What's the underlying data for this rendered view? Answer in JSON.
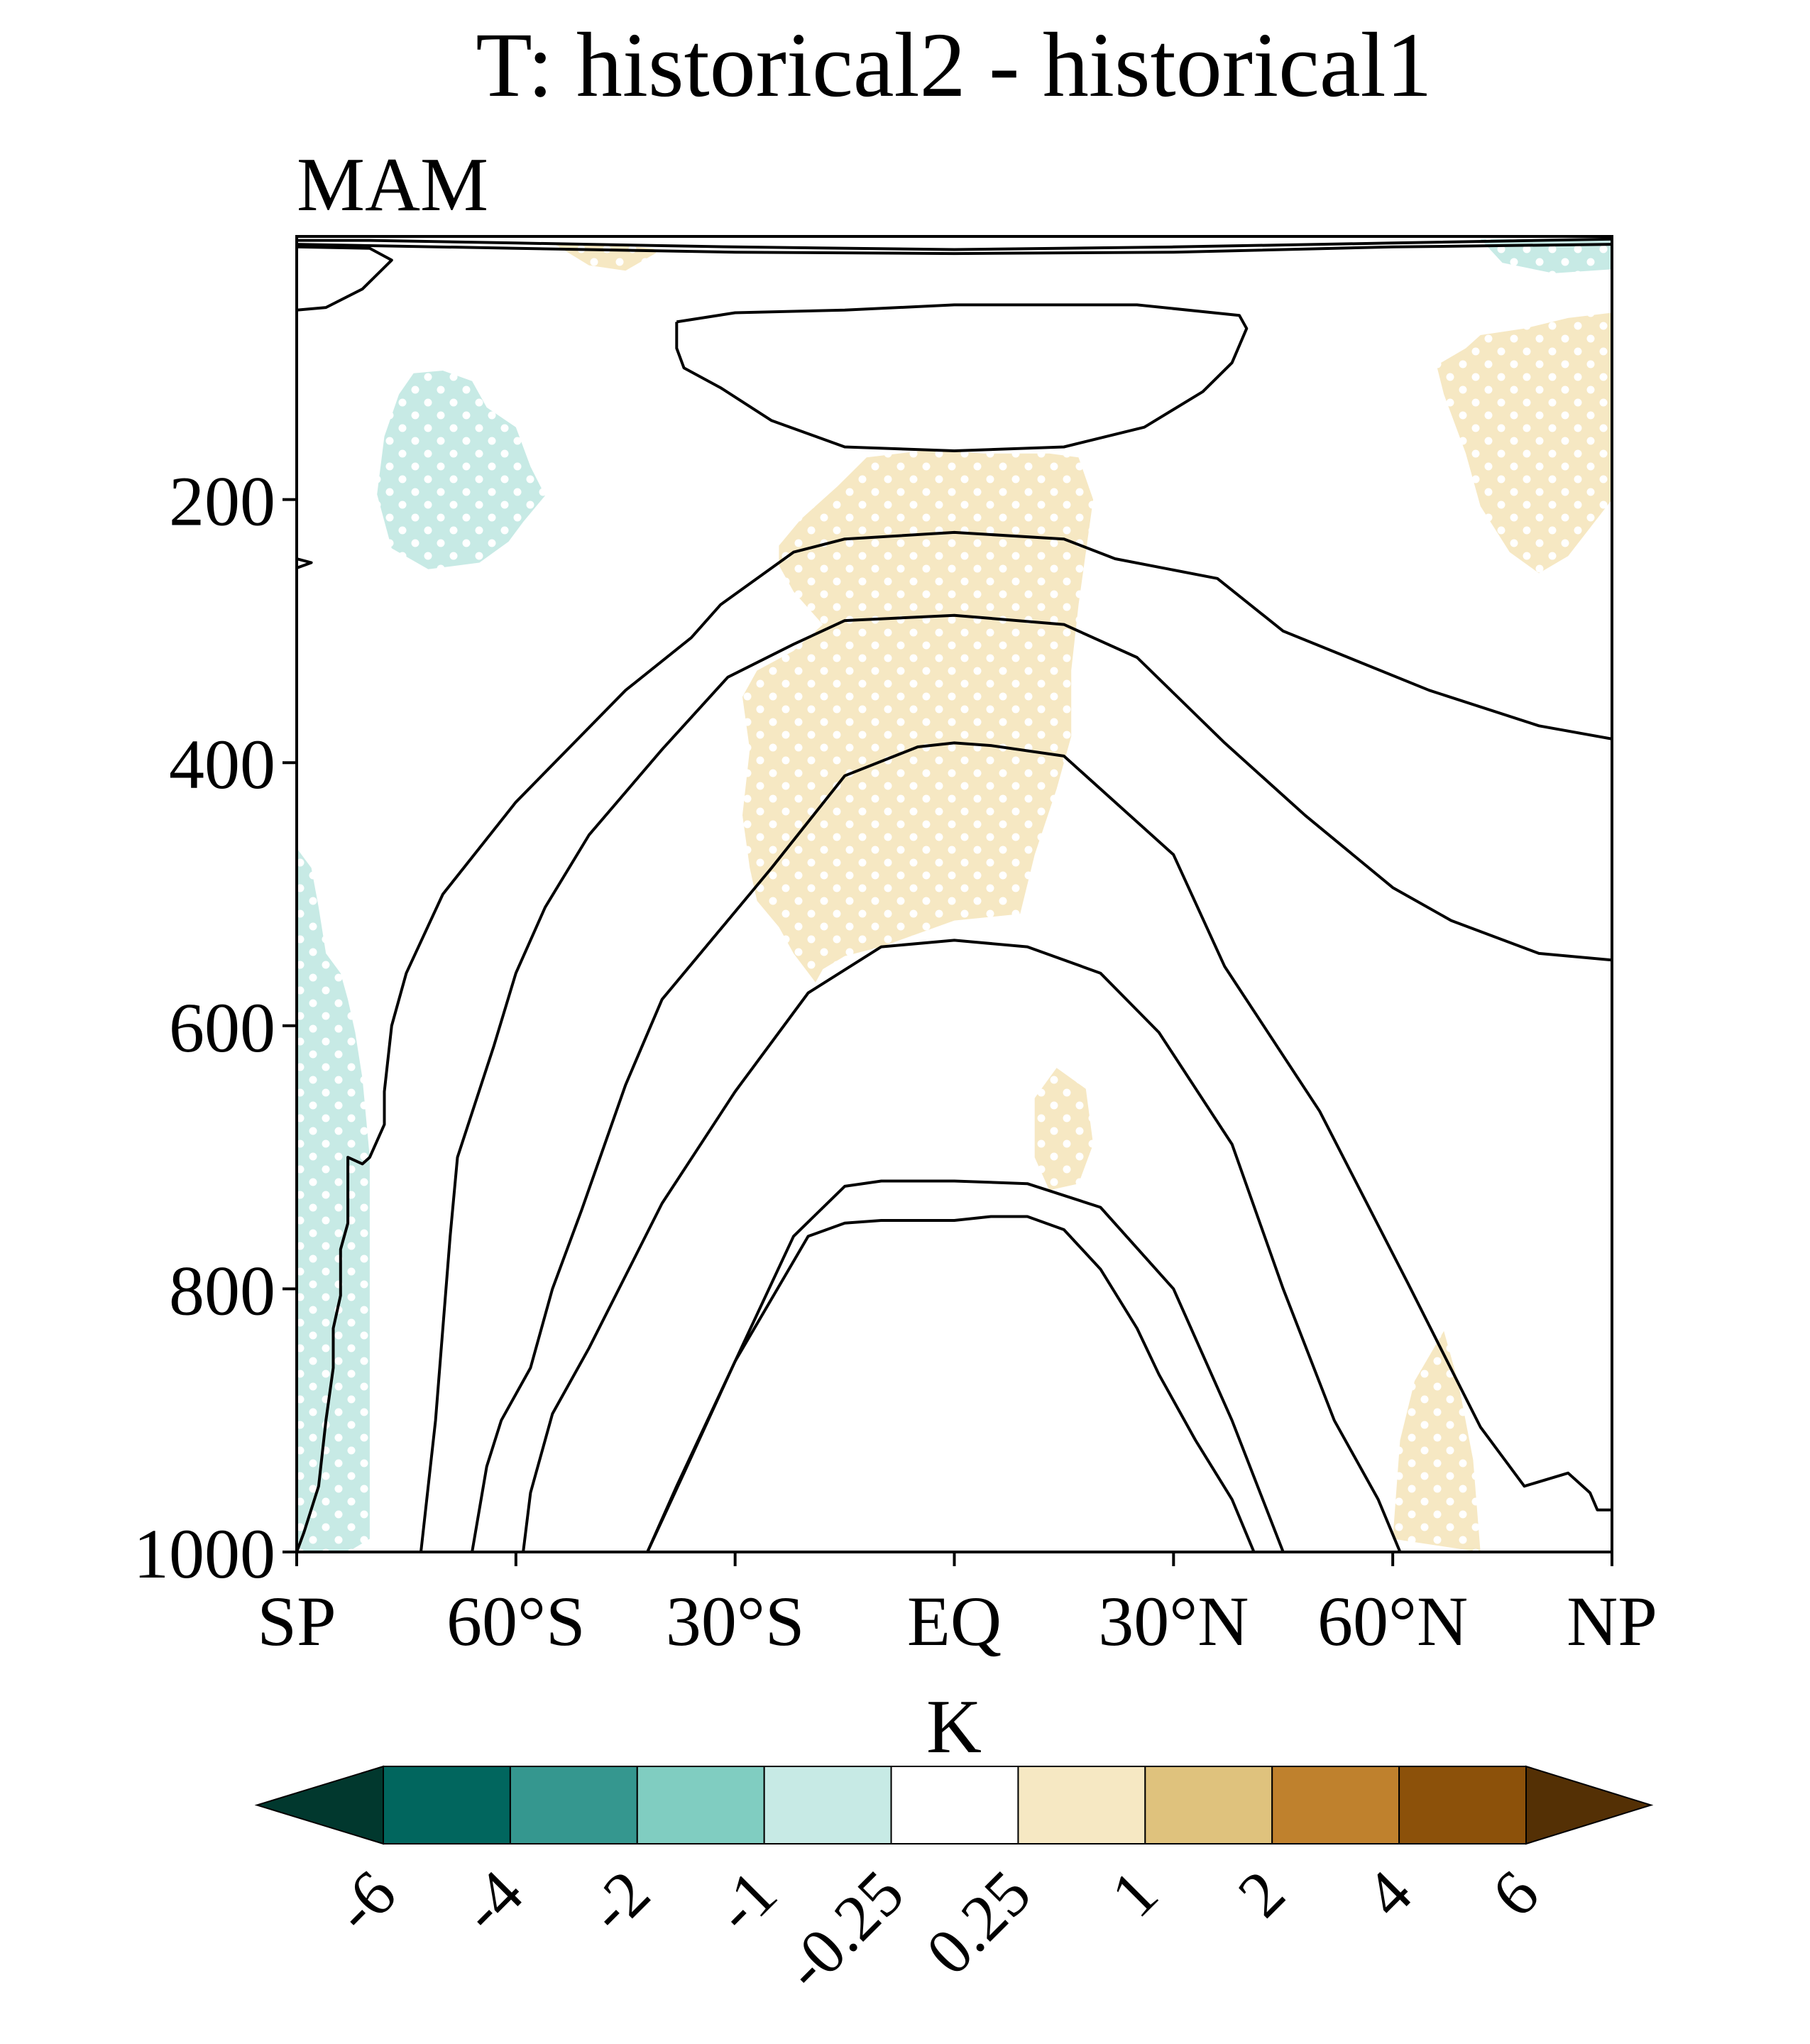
{
  "figure": {
    "title": "T: historical2 - historical1",
    "season": "MAM"
  },
  "chart_data": {
    "type": "contour",
    "title": "T: historical2 - historical1",
    "subtitle": "MAM",
    "x_axis": {
      "range": [
        -90,
        90
      ],
      "ticks": [
        -90,
        -60,
        -30,
        0,
        30,
        60,
        90
      ],
      "tick_labels": [
        "SP",
        "60°S",
        "30°S",
        "EQ",
        "30°N",
        "60°N",
        "NP"
      ]
    },
    "y_axis": {
      "range": [
        1000,
        0
      ],
      "ticks": [
        200,
        400,
        600,
        800,
        1000
      ],
      "tick_labels": [
        "200",
        "400",
        "600",
        "800",
        "1000"
      ]
    },
    "grid": false,
    "contour_lines": [
      {
        "points": [
          [
            -90,
            1000
          ],
          [
            -89,
            985
          ],
          [
            -87,
            950
          ],
          [
            -86,
            900
          ],
          [
            -85,
            860
          ],
          [
            -85,
            830
          ],
          [
            -84,
            805
          ],
          [
            -84,
            770
          ],
          [
            -83,
            750
          ],
          [
            -83,
            730
          ],
          [
            -83,
            700
          ],
          [
            -81,
            705
          ],
          [
            -80,
            700
          ],
          [
            -78,
            675
          ],
          [
            -78,
            650
          ],
          [
            -77,
            600
          ],
          [
            -75,
            560
          ],
          [
            -70,
            500
          ],
          [
            -60,
            430
          ],
          [
            -45,
            345
          ],
          [
            -36,
            305
          ],
          [
            -32,
            280
          ],
          [
            -22,
            240
          ],
          [
            -15,
            230
          ],
          [
            0,
            225
          ],
          [
            15,
            230
          ],
          [
            22,
            245
          ],
          [
            36,
            260
          ],
          [
            45,
            300
          ],
          [
            65,
            345
          ],
          [
            80,
            372
          ],
          [
            90,
            382
          ]
        ]
      },
      {
        "points": [
          [
            -73,
            1000
          ],
          [
            -72,
            950
          ],
          [
            -71,
            900
          ],
          [
            -70,
            830
          ],
          [
            -69,
            760
          ],
          [
            -68,
            700
          ],
          [
            -63,
            615
          ],
          [
            -60,
            560
          ],
          [
            -56,
            510
          ],
          [
            -50,
            455
          ],
          [
            -40,
            390
          ],
          [
            -31,
            335
          ],
          [
            -22,
            310
          ],
          [
            -15,
            292
          ],
          [
            0,
            288
          ],
          [
            15,
            295
          ],
          [
            25,
            320
          ],
          [
            37,
            385
          ],
          [
            48,
            440
          ],
          [
            60,
            495
          ],
          [
            68,
            520
          ],
          [
            80,
            545
          ],
          [
            90,
            550
          ]
        ]
      },
      {
        "points": [
          [
            -66,
            1000
          ],
          [
            -64,
            935
          ],
          [
            -62,
            900
          ],
          [
            -58,
            860
          ],
          [
            -55,
            800
          ],
          [
            -51,
            740
          ],
          [
            -45,
            645
          ],
          [
            -40,
            580
          ],
          [
            -25,
            480
          ],
          [
            -15,
            410
          ],
          [
            -5,
            388
          ],
          [
            0,
            385
          ],
          [
            5,
            387
          ],
          [
            15,
            395
          ],
          [
            30,
            470
          ],
          [
            37,
            555
          ],
          [
            50,
            665
          ],
          [
            62,
            795
          ],
          [
            67,
            850
          ],
          [
            72,
            905
          ],
          [
            78,
            950
          ],
          [
            84,
            940
          ],
          [
            87,
            955
          ],
          [
            88,
            968
          ],
          [
            90,
            968
          ]
        ]
      },
      {
        "points": [
          [
            -42,
            1000
          ],
          [
            -37,
            940
          ],
          [
            -30,
            855
          ],
          [
            -22,
            760
          ],
          [
            -15,
            722
          ],
          [
            -10,
            718
          ],
          [
            0,
            718
          ],
          [
            10,
            720
          ],
          [
            20,
            738
          ],
          [
            30,
            800
          ],
          [
            38,
            900
          ],
          [
            45,
            1000
          ]
        ]
      },
      {
        "points": [
          [
            -59,
            1000
          ],
          [
            -58,
            955
          ],
          [
            -55,
            895
          ],
          [
            -50,
            845
          ],
          [
            -45,
            790
          ],
          [
            -40,
            735
          ],
          [
            -30,
            650
          ],
          [
            -20,
            575
          ],
          [
            -10,
            540
          ],
          [
            0,
            535
          ],
          [
            10,
            540
          ],
          [
            20,
            560
          ],
          [
            28,
            605
          ],
          [
            38,
            690
          ],
          [
            45,
            800
          ],
          [
            52,
            900
          ],
          [
            58,
            960
          ],
          [
            61,
            1000
          ]
        ]
      },
      {
        "points": [
          [
            -42,
            1000
          ],
          [
            -38,
            950
          ],
          [
            -30,
            855
          ],
          [
            -20,
            760
          ],
          [
            -15,
            750
          ],
          [
            -10,
            748
          ],
          [
            0,
            748
          ],
          [
            5,
            745
          ],
          [
            10,
            745
          ],
          [
            15,
            755
          ],
          [
            20,
            785
          ],
          [
            25,
            830
          ],
          [
            28,
            865
          ],
          [
            33,
            915
          ],
          [
            38,
            960
          ],
          [
            41,
            1000
          ]
        ]
      },
      {
        "points": [
          [
            -38,
            65
          ],
          [
            -38,
            85
          ],
          [
            -37,
            100
          ],
          [
            -32,
            115
          ],
          [
            -25,
            140
          ],
          [
            -15,
            160
          ],
          [
            0,
            163
          ],
          [
            15,
            160
          ],
          [
            26,
            145
          ],
          [
            34,
            118
          ],
          [
            38,
            96
          ],
          [
            40,
            70
          ],
          [
            39,
            60
          ],
          [
            25,
            52
          ],
          [
            0,
            52
          ],
          [
            -15,
            56
          ],
          [
            -30,
            58
          ],
          [
            -38,
            65
          ]
        ]
      },
      {
        "points": [
          [
            -90,
            3
          ],
          [
            -80,
            3
          ],
          [
            -60,
            5
          ],
          [
            -30,
            8
          ],
          [
            0,
            10
          ],
          [
            30,
            8
          ],
          [
            60,
            5
          ],
          [
            90,
            2
          ]
        ]
      },
      {
        "points": [
          [
            -90,
            6
          ],
          [
            -80,
            7
          ],
          [
            -60,
            9
          ],
          [
            -30,
            12
          ],
          [
            0,
            13
          ],
          [
            30,
            12
          ],
          [
            60,
            8
          ],
          [
            90,
            6
          ]
        ]
      },
      {
        "points": [
          [
            -90,
            8
          ],
          [
            -80,
            9
          ],
          [
            -77,
            18
          ],
          [
            -81,
            40
          ],
          [
            -86,
            54
          ],
          [
            -90,
            56
          ]
        ]
      },
      {
        "points": [
          [
            -90,
            245
          ],
          [
            -88,
            248
          ],
          [
            -90,
            252
          ]
        ]
      }
    ],
    "shaded_regions": [
      {
        "level": "0.25 to 1",
        "points": [
          [
            -29,
            350
          ],
          [
            -27,
            330
          ],
          [
            -22,
            315
          ],
          [
            -18,
            295
          ],
          [
            -22,
            270
          ],
          [
            -24,
            250
          ],
          [
            -24,
            235
          ],
          [
            -21,
            215
          ],
          [
            -16,
            190
          ],
          [
            -12,
            168
          ],
          [
            -3,
            162
          ],
          [
            4,
            165
          ],
          [
            13,
            165
          ],
          [
            17,
            168
          ],
          [
            19,
            200
          ],
          [
            18,
            240
          ],
          [
            17,
            280
          ],
          [
            16,
            330
          ],
          [
            16,
            380
          ],
          [
            14,
            420
          ],
          [
            11,
            470
          ],
          [
            9,
            515
          ],
          [
            0,
            520
          ],
          [
            -10,
            540
          ],
          [
            -15,
            547
          ],
          [
            -18,
            557
          ],
          [
            -19,
            567
          ],
          [
            -22,
            545
          ],
          [
            -24,
            525
          ],
          [
            -27,
            505
          ],
          [
            -28,
            480
          ],
          [
            -29,
            440
          ],
          [
            -28,
            390
          ]
        ]
      },
      {
        "level": "0.25 to 1",
        "points": [
          [
            70,
            85
          ],
          [
            72,
            75
          ],
          [
            78,
            70
          ],
          [
            84,
            62
          ],
          [
            90,
            58
          ],
          [
            90,
            200
          ],
          [
            84,
            243
          ],
          [
            80,
            256
          ],
          [
            76,
            240
          ],
          [
            72,
            205
          ],
          [
            70,
            165
          ],
          [
            67,
            120
          ],
          [
            66,
            98
          ]
        ]
      },
      {
        "level": "0.25 to 1",
        "points": [
          [
            -55,
            5
          ],
          [
            -45,
            7
          ],
          [
            -40,
            10
          ],
          [
            -45,
            26
          ],
          [
            -50,
            22
          ]
        ]
      },
      {
        "level": "0.25 to 1",
        "points": [
          [
            11,
            655
          ],
          [
            14,
            632
          ],
          [
            18,
            648
          ],
          [
            19,
            690
          ],
          [
            17,
            720
          ],
          [
            13,
            725
          ],
          [
            11,
            700
          ]
        ]
      },
      {
        "level": "0.25 to 1",
        "points": [
          [
            60,
            990
          ],
          [
            61,
            915
          ],
          [
            63,
            870
          ],
          [
            67,
            832
          ],
          [
            69,
            872
          ],
          [
            71,
            930
          ],
          [
            72,
            1000
          ]
        ]
      },
      {
        "level": "-1 to -0.25",
        "points": [
          [
            -79,
            196
          ],
          [
            -78,
            152
          ],
          [
            -76,
            120
          ],
          [
            -74,
            104
          ],
          [
            -70,
            102
          ],
          [
            -66,
            110
          ],
          [
            -64,
            130
          ],
          [
            -60,
            145
          ],
          [
            -58,
            175
          ],
          [
            -56,
            197
          ],
          [
            -59,
            217
          ],
          [
            -61,
            232
          ],
          [
            -65,
            248
          ],
          [
            -72,
            253
          ],
          [
            -77,
            237
          ]
        ]
      },
      {
        "level": "-1 to -0.25",
        "points": [
          [
            -90,
            465
          ],
          [
            -88,
            480
          ],
          [
            -87,
            510
          ],
          [
            -86,
            545
          ],
          [
            -84,
            560
          ],
          [
            -83,
            580
          ],
          [
            -82,
            605
          ],
          [
            -81,
            640
          ],
          [
            -80,
            700
          ],
          [
            -80,
            780
          ],
          [
            -80,
            880
          ],
          [
            -80,
            990
          ],
          [
            -83,
            1000
          ],
          [
            -90,
            1000
          ]
        ]
      },
      {
        "level": "-1 to -0.25",
        "points": [
          [
            72,
            2
          ],
          [
            90,
            2
          ],
          [
            90,
            25
          ],
          [
            82,
            28
          ],
          [
            75,
            20
          ]
        ]
      }
    ],
    "colorbar": {
      "label": "K",
      "levels": [
        "-6",
        "-4",
        "-2",
        "-1",
        "-0.25",
        "0.25",
        "1",
        "2",
        "4",
        "6"
      ],
      "colors": [
        "#01382e",
        "#01665e",
        "#35978f",
        "#80cdc1",
        "#c7eae5",
        "#ffffff",
        "#f6e8c3",
        "#dfc27d",
        "#bf812d",
        "#8c510a",
        "#543005"
      ],
      "orientation": "horizontal",
      "extend": "both"
    },
    "stipple": "white dots over shaded regions"
  }
}
